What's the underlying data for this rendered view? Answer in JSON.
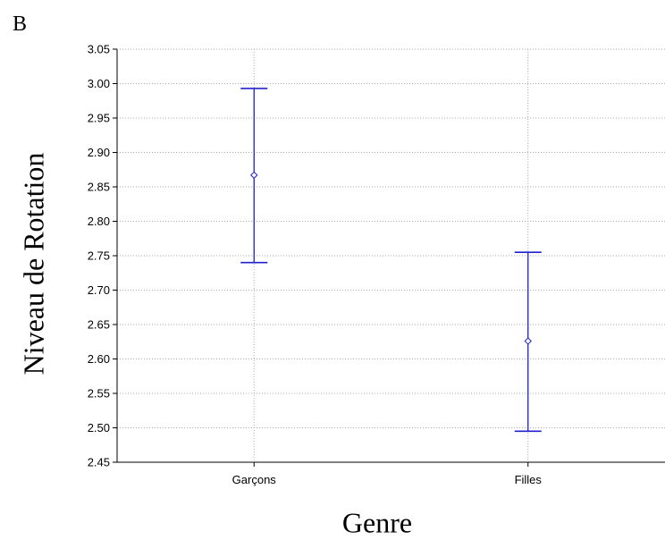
{
  "panel_label": "B",
  "chart_data": {
    "type": "scatter",
    "xlabel": "Genre",
    "ylabel": "Niveau de Rotation",
    "categories": [
      "Garçons",
      "Filles"
    ],
    "series": [
      {
        "points": [
          {
            "category": "Garçons",
            "mean": 2.867,
            "lower": 2.74,
            "upper": 2.993
          },
          {
            "category": "Filles",
            "mean": 2.626,
            "lower": 2.495,
            "upper": 2.755
          }
        ]
      }
    ],
    "ylim": [
      2.45,
      3.05
    ],
    "yticks": [
      "2.45",
      "2.50",
      "2.55",
      "2.60",
      "2.65",
      "2.70",
      "2.75",
      "2.80",
      "2.85",
      "2.90",
      "2.95",
      "3.00",
      "3.05"
    ],
    "grid": true,
    "colors": {
      "series": "#2020cc",
      "grid": "#aaaaaa",
      "axis": "#000000"
    }
  }
}
